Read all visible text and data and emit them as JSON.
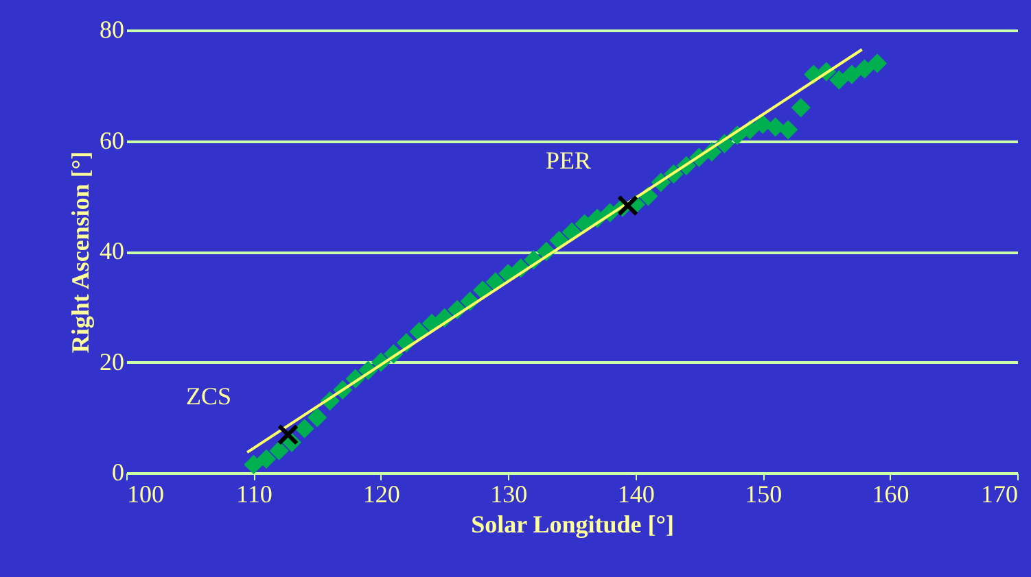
{
  "chart_data": {
    "type": "scatter",
    "xlabel": "Solar Longitude [°]",
    "ylabel": "Right Ascension [°]",
    "xlim": [
      100,
      170
    ],
    "xticks": [
      100,
      110,
      120,
      130,
      140,
      150,
      160,
      170
    ],
    "ylim": [
      0,
      80
    ],
    "yticks": [
      0,
      20,
      40,
      60,
      80
    ],
    "grid": "y",
    "series": [
      {
        "type": "scatter",
        "marker": "diamond",
        "color": "#00b050",
        "x": [
          110,
          111,
          112,
          113,
          114,
          115,
          116,
          117,
          118,
          119,
          120,
          121,
          122,
          123,
          124,
          125,
          126,
          127,
          128,
          129,
          130,
          131,
          132,
          133,
          134,
          135,
          136,
          137,
          138,
          139,
          140,
          141,
          142,
          143,
          144,
          145,
          146,
          147,
          148,
          149,
          150,
          151,
          152,
          153,
          154,
          155,
          156,
          157,
          158,
          159
        ],
        "values": [
          1.5,
          2.5,
          4,
          5.5,
          8,
          10,
          13,
          15,
          17,
          18.5,
          20,
          21.5,
          23.5,
          25.5,
          27,
          28,
          29.5,
          31,
          33,
          34.5,
          36,
          37,
          38.5,
          40,
          42,
          43.5,
          45,
          46,
          47,
          48,
          48.5,
          50,
          52.5,
          54,
          55.5,
          57,
          58,
          59.5,
          61,
          62,
          63,
          62.5,
          62,
          66,
          72,
          72.5,
          71,
          72,
          73,
          74
        ]
      },
      {
        "type": "line",
        "marker": "none",
        "line_style": "solid",
        "color": "#ffff66",
        "x": [
          109.5,
          157.8
        ],
        "values": [
          3.7,
          76.5
        ]
      },
      {
        "marker": "cross",
        "color": "#000000",
        "x": [
          112.7,
          139.4
        ],
        "values": [
          6.9,
          48.3
        ]
      }
    ],
    "annotations": [
      "ZCS",
      "PER"
    ]
  }
}
